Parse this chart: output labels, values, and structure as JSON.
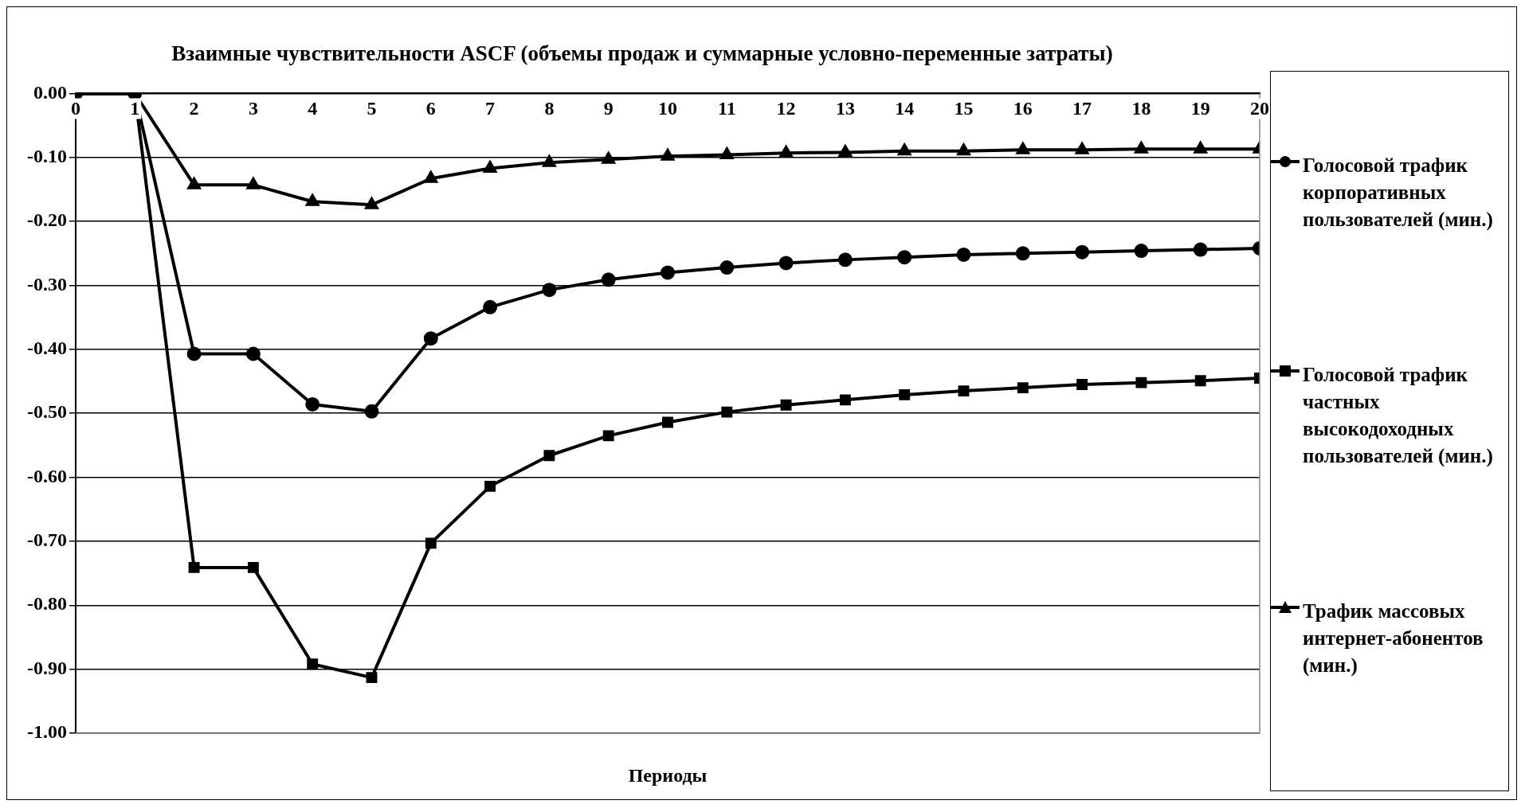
{
  "chart_data": {
    "type": "line",
    "title": "Взаимные чувствительности ASCF (объемы продаж и суммарные условно-переменные затраты)",
    "xlabel": "Периоды",
    "x": [
      0,
      1,
      2,
      3,
      4,
      5,
      6,
      7,
      8,
      9,
      10,
      11,
      12,
      13,
      14,
      15,
      16,
      17,
      18,
      19,
      20
    ],
    "series": [
      {
        "name": "Голосовой трафик корпоративных пользователей (мин.)",
        "color": "#000000",
        "marker": "circle",
        "values": [
          0,
          0,
          -0.407,
          -0.407,
          -0.486,
          -0.497,
          -0.383,
          -0.334,
          -0.307,
          -0.291,
          -0.28,
          -0.272,
          -0.265,
          -0.26,
          -0.256,
          -0.252,
          -0.25,
          -0.248,
          -0.246,
          -0.244,
          -0.242
        ]
      },
      {
        "name": "Голосовой трафик частных высокодоходных пользователей (мин.)",
        "color": "#000000",
        "marker": "square",
        "values": [
          0,
          0,
          -0.741,
          -0.741,
          -0.892,
          -0.913,
          -0.703,
          -0.614,
          -0.566,
          -0.535,
          -0.514,
          -0.498,
          -0.487,
          -0.479,
          -0.471,
          -0.465,
          -0.46,
          -0.455,
          -0.452,
          -0.449,
          -0.445
        ]
      },
      {
        "name": "Трафик массовых интернет-абонентов (мин.)",
        "color": "#000000",
        "marker": "triangle",
        "values": [
          0,
          0,
          -0.143,
          -0.143,
          -0.169,
          -0.174,
          -0.133,
          -0.117,
          -0.108,
          -0.103,
          -0.098,
          -0.096,
          -0.093,
          -0.092,
          -0.09,
          -0.09,
          -0.088,
          -0.088,
          -0.087,
          -0.087,
          -0.087
        ]
      }
    ],
    "xlim": [
      0,
      20
    ],
    "xticks": [
      0,
      1,
      2,
      3,
      4,
      5,
      6,
      7,
      8,
      9,
      10,
      11,
      12,
      13,
      14,
      15,
      16,
      17,
      18,
      19,
      20
    ],
    "ylim": [
      -1,
      0
    ],
    "yticks": [
      {
        "value": 0,
        "label": "0.00"
      },
      {
        "value": -0.1,
        "label": "-0.10"
      },
      {
        "value": -0.2,
        "label": "-0.20"
      },
      {
        "value": -0.3,
        "label": "-0.30"
      },
      {
        "value": -0.4,
        "label": "-0.40"
      },
      {
        "value": -0.5,
        "label": "-0.50"
      },
      {
        "value": -0.6,
        "label": "-0.60"
      },
      {
        "value": -0.7,
        "label": "-0.70"
      },
      {
        "value": -0.8,
        "label": "-0.80"
      },
      {
        "value": -0.9,
        "label": "-0.90"
      },
      {
        "value": -1,
        "label": "-1.00"
      }
    ],
    "grid": "y",
    "legend": "right",
    "line_style": "solid"
  }
}
